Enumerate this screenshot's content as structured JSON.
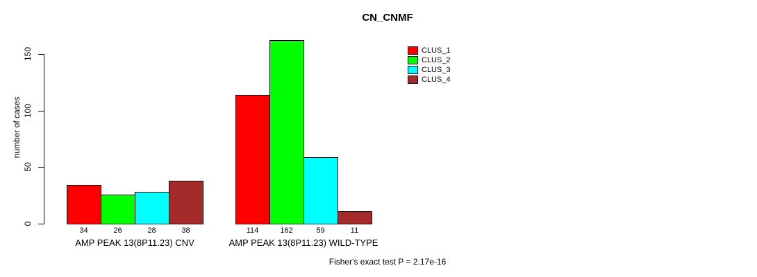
{
  "chart_data": {
    "type": "bar",
    "title": "CN_CNMF",
    "xlabel": "",
    "ylabel": "number of cases",
    "ylim": [
      0,
      150
    ],
    "yticks": [
      0,
      50,
      100,
      150
    ],
    "grid": false,
    "background_color": "#ffffff",
    "axis_color": "#000000",
    "text_color": "#000000",
    "legend_position": "top-right",
    "bar_value_labels_shown": true,
    "categories": [
      "AMP PEAK 13(8P11.23) CNV",
      "AMP PEAK 13(8P11.23) WILD-TYPE"
    ],
    "series": [
      {
        "name": "CLUS_1",
        "color": "#ff0000",
        "values": [
          34,
          114
        ]
      },
      {
        "name": "CLUS_2",
        "color": "#00ff00",
        "values": [
          26,
          162
        ]
      },
      {
        "name": "CLUS_3",
        "color": "#00ffff",
        "values": [
          28,
          59
        ]
      },
      {
        "name": "CLUS_4",
        "color": "#a52a2a",
        "values": [
          38,
          11
        ]
      }
    ],
    "annotation": "Fisher's exact test P = 2.17e-16"
  }
}
